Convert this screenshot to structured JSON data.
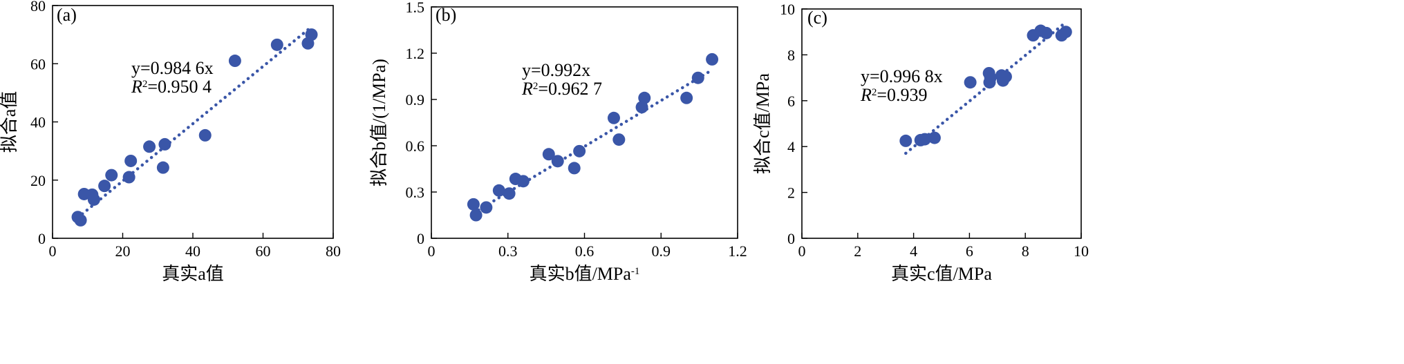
{
  "colors": {
    "point": "#3a56a8",
    "trend": "#3a56a8",
    "axis": "#000000"
  },
  "chart_data": [
    {
      "type": "scatter",
      "panel_label": "(a)",
      "xlabel": "真实a值",
      "ylabel": "拟合a值",
      "xlim": [
        0,
        80
      ],
      "ylim": [
        0,
        80
      ],
      "xticks": [
        0,
        20,
        40,
        60,
        80
      ],
      "yticks": [
        0,
        20,
        40,
        60,
        80
      ],
      "tick_labels_x": [
        "0",
        "20",
        "40",
        "60",
        "80"
      ],
      "tick_labels_y": [
        "0",
        "20",
        "40",
        "60",
        "80"
      ],
      "grid": false,
      "points": [
        {
          "x": 7.2,
          "y": 7.3
        },
        {
          "x": 8.0,
          "y": 6.2
        },
        {
          "x": 9.0,
          "y": 15.2
        },
        {
          "x": 11.3,
          "y": 15.0
        },
        {
          "x": 11.8,
          "y": 13.3
        },
        {
          "x": 14.8,
          "y": 18.0
        },
        {
          "x": 16.8,
          "y": 21.7
        },
        {
          "x": 21.8,
          "y": 21.0
        },
        {
          "x": 22.3,
          "y": 26.6
        },
        {
          "x": 27.6,
          "y": 31.5
        },
        {
          "x": 31.5,
          "y": 24.3
        },
        {
          "x": 32.0,
          "y": 32.3
        },
        {
          "x": 43.5,
          "y": 35.4
        },
        {
          "x": 52.0,
          "y": 61.0
        },
        {
          "x": 64.0,
          "y": 66.5
        },
        {
          "x": 72.8,
          "y": 67.0
        },
        {
          "x": 73.8,
          "y": 70.0
        }
      ],
      "trendline": {
        "slope": 0.9846,
        "x_range": [
          7.2,
          73.8
        ]
      },
      "equation": {
        "line1": "y=0.984 6x",
        "r2_label": "R",
        "r2_sup": "2",
        "r2_value": "=0.950 4"
      }
    },
    {
      "type": "scatter",
      "panel_label": "(b)",
      "xlabel": "真实b值/MPa",
      "xlabel_sup": "-1",
      "ylabel": "拟合b值/(1/MPa)",
      "xlim": [
        0,
        1.2
      ],
      "ylim": [
        0,
        1.5
      ],
      "xticks": [
        0,
        0.3,
        0.6,
        0.9,
        1.2
      ],
      "yticks": [
        0,
        0.3,
        0.6,
        0.9,
        1.2,
        1.5
      ],
      "tick_labels_x": [
        "0",
        "0.3",
        "0.6",
        "0.9",
        "1.2"
      ],
      "tick_labels_y": [
        "0",
        "0.3",
        "0.6",
        "0.9",
        "1.2",
        "1.5"
      ],
      "grid": false,
      "points": [
        {
          "x": 0.165,
          "y": 0.22
        },
        {
          "x": 0.175,
          "y": 0.15
        },
        {
          "x": 0.215,
          "y": 0.2
        },
        {
          "x": 0.265,
          "y": 0.31
        },
        {
          "x": 0.305,
          "y": 0.29
        },
        {
          "x": 0.33,
          "y": 0.385
        },
        {
          "x": 0.36,
          "y": 0.37
        },
        {
          "x": 0.46,
          "y": 0.545
        },
        {
          "x": 0.495,
          "y": 0.5
        },
        {
          "x": 0.56,
          "y": 0.455
        },
        {
          "x": 0.58,
          "y": 0.565
        },
        {
          "x": 0.715,
          "y": 0.78
        },
        {
          "x": 0.735,
          "y": 0.64
        },
        {
          "x": 0.825,
          "y": 0.85
        },
        {
          "x": 0.835,
          "y": 0.91
        },
        {
          "x": 1.0,
          "y": 0.91
        },
        {
          "x": 1.045,
          "y": 1.04
        },
        {
          "x": 1.1,
          "y": 1.16
        }
      ],
      "trendline": {
        "slope": 0.992,
        "x_range": [
          0.165,
          1.1
        ]
      },
      "equation": {
        "line1": "y=0.992x",
        "r2_label": "R",
        "r2_sup": "2",
        "r2_value": "=0.962 7"
      }
    },
    {
      "type": "scatter",
      "panel_label": "(c)",
      "xlabel": "真实c值/MPa",
      "ylabel": "拟合c值/MPa",
      "xlim": [
        0,
        10
      ],
      "ylim": [
        0,
        10
      ],
      "xticks": [
        0,
        2,
        4,
        6,
        8,
        10
      ],
      "yticks": [
        0,
        2,
        4,
        6,
        8,
        10
      ],
      "tick_labels_x": [
        "0",
        "2",
        "4",
        "6",
        "8",
        "10"
      ],
      "tick_labels_y": [
        "0",
        "2",
        "4",
        "6",
        "8",
        "10"
      ],
      "grid": false,
      "points": [
        {
          "x": 3.72,
          "y": 4.25
        },
        {
          "x": 4.25,
          "y": 4.28
        },
        {
          "x": 4.4,
          "y": 4.32
        },
        {
          "x": 4.75,
          "y": 4.38
        },
        {
          "x": 6.03,
          "y": 6.8
        },
        {
          "x": 6.7,
          "y": 7.2
        },
        {
          "x": 6.72,
          "y": 6.8
        },
        {
          "x": 6.75,
          "y": 7.0
        },
        {
          "x": 7.15,
          "y": 7.1
        },
        {
          "x": 7.2,
          "y": 6.88
        },
        {
          "x": 7.3,
          "y": 7.05
        },
        {
          "x": 8.28,
          "y": 8.85
        },
        {
          "x": 8.55,
          "y": 9.05
        },
        {
          "x": 8.75,
          "y": 8.95
        },
        {
          "x": 9.3,
          "y": 8.85
        },
        {
          "x": 9.45,
          "y": 9.0
        }
      ],
      "trendline": {
        "slope": 0.9968,
        "x_range": [
          3.72,
          9.45
        ]
      },
      "equation": {
        "line1": "y=0.996 8x",
        "r2_label": "R",
        "r2_sup": "2",
        "r2_value": "=0.939"
      }
    }
  ]
}
